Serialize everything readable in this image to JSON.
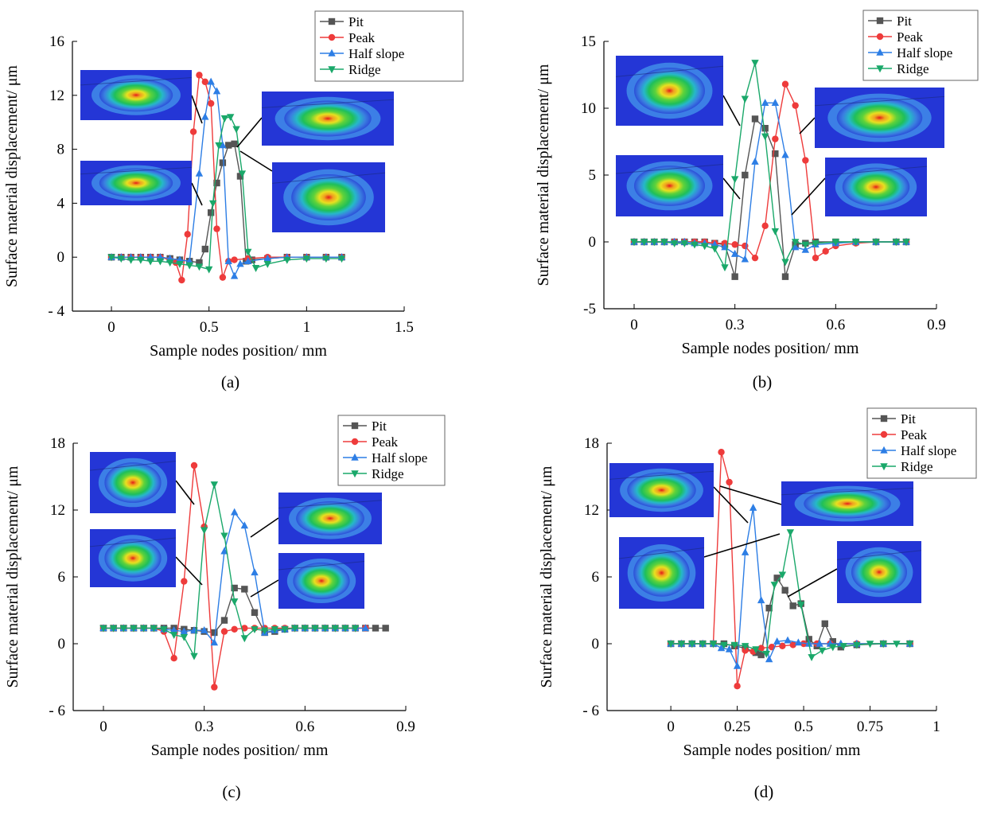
{
  "figure": {
    "panel_labels": [
      "(a)",
      "(b)",
      "(c)",
      "(d)"
    ]
  },
  "colors": {
    "Pit": "#555555",
    "Peak": "#ee3b3b",
    "Half slope": "#2d7ee5",
    "Ridge": "#1aa86a"
  },
  "markers": {
    "Pit": "square",
    "Peak": "circle",
    "Half slope": "triangle-up",
    "Ridge": "triangle-down"
  },
  "chart_data": [
    {
      "type": "line",
      "panel": "(a)",
      "xlabel": "Sample nodes position/ mm",
      "ylabel": "Surface material displacement/ μm",
      "xlim": [
        -0.2,
        1.5
      ],
      "ylim": [
        -4,
        16
      ],
      "xticks": [
        0,
        0.5,
        1,
        1.5
      ],
      "xtick_labels": [
        "0",
        "0.5",
        "1",
        "1.5"
      ],
      "yticks": [
        -4,
        0,
        4,
        8,
        12,
        16
      ],
      "ytick_labels": [
        "- 4",
        "0",
        "4",
        "8",
        "12",
        "16"
      ],
      "legend": [
        "Pit",
        "Peak",
        "Half slope",
        "Ridge"
      ],
      "legend_position": "top-right",
      "series": [
        {
          "name": "Pit",
          "x": [
            0,
            0.05,
            0.1,
            0.15,
            0.2,
            0.25,
            0.3,
            0.35,
            0.4,
            0.45,
            0.48,
            0.51,
            0.54,
            0.57,
            0.6,
            0.63,
            0.66,
            0.69,
            0.72,
            0.8,
            0.9,
            1,
            1.1,
            1.18
          ],
          "y": [
            0,
            0,
            0,
            0,
            0,
            0,
            -0.1,
            -0.2,
            -0.3,
            -0.4,
            0.6,
            3.3,
            5.5,
            7,
            8.3,
            8.4,
            6,
            -0.3,
            -0.2,
            -0.1,
            0,
            0,
            0,
            0
          ]
        },
        {
          "name": "Peak",
          "x": [
            0,
            0.05,
            0.1,
            0.15,
            0.2,
            0.25,
            0.3,
            0.33,
            0.36,
            0.39,
            0.42,
            0.45,
            0.48,
            0.51,
            0.54,
            0.57,
            0.6,
            0.63,
            0.7,
            0.8,
            0.9,
            1,
            1.1,
            1.18
          ],
          "y": [
            0,
            0,
            0,
            0,
            0,
            0,
            -0.2,
            -0.4,
            -1.7,
            1.7,
            9.3,
            13.5,
            13,
            11.4,
            2.1,
            -1.5,
            -0.3,
            -0.2,
            -0.1,
            0,
            0,
            0,
            0,
            0
          ]
        },
        {
          "name": "Half slope",
          "x": [
            0,
            0.05,
            0.1,
            0.15,
            0.2,
            0.25,
            0.3,
            0.35,
            0.4,
            0.45,
            0.48,
            0.51,
            0.54,
            0.57,
            0.6,
            0.63,
            0.66,
            0.7,
            0.8,
            0.9,
            1,
            1.1,
            1.18
          ],
          "y": [
            0,
            0,
            0,
            0,
            0,
            0,
            -0.1,
            -0.2,
            -0.3,
            6.2,
            10.4,
            13,
            12.3,
            8.3,
            -0.3,
            -1.4,
            -0.5,
            -0.3,
            -0.1,
            0,
            0,
            0,
            0
          ]
        },
        {
          "name": "Ridge",
          "x": [
            0,
            0.05,
            0.1,
            0.15,
            0.2,
            0.25,
            0.3,
            0.35,
            0.4,
            0.45,
            0.5,
            0.52,
            0.55,
            0.58,
            0.61,
            0.64,
            0.67,
            0.7,
            0.74,
            0.8,
            0.9,
            1,
            1.1,
            1.18
          ],
          "y": [
            0,
            -0.1,
            -0.2,
            -0.2,
            -0.3,
            -0.3,
            -0.4,
            -0.5,
            -0.6,
            -0.7,
            -0.9,
            4,
            8.3,
            10.3,
            10.4,
            9.5,
            6.2,
            0.4,
            -0.8,
            -0.5,
            -0.2,
            -0.1,
            -0.1,
            -0.1
          ]
        }
      ]
    },
    {
      "type": "line",
      "panel": "(b)",
      "xlabel": "Sample nodes position/ mm",
      "ylabel": "Surface material displacement/ μm",
      "xlim": [
        -0.09,
        0.9
      ],
      "ylim": [
        -5,
        15
      ],
      "xticks": [
        0,
        0.3,
        0.6,
        0.9
      ],
      "xtick_labels": [
        "0",
        "0.3",
        "0.6",
        "0.9"
      ],
      "yticks": [
        -5,
        0,
        5,
        10,
        15
      ],
      "ytick_labels": [
        "-5",
        "0",
        "5",
        "10",
        "15"
      ],
      "legend": [
        "Pit",
        "Peak",
        "Half slope",
        "Ridge"
      ],
      "legend_position": "top-right",
      "series": [
        {
          "name": "Pit",
          "x": [
            0,
            0.03,
            0.06,
            0.09,
            0.12,
            0.15,
            0.18,
            0.21,
            0.24,
            0.27,
            0.3,
            0.33,
            0.36,
            0.39,
            0.42,
            0.45,
            0.48,
            0.51,
            0.54,
            0.6,
            0.66,
            0.72,
            0.78,
            0.81
          ],
          "y": [
            0,
            0,
            0,
            0,
            0,
            0,
            0,
            0,
            -0.1,
            -0.2,
            -2.6,
            5,
            9.2,
            8.5,
            6.6,
            -2.6,
            -0.2,
            -0.1,
            0,
            0,
            0,
            0,
            0,
            0
          ]
        },
        {
          "name": "Peak",
          "x": [
            0,
            0.03,
            0.06,
            0.09,
            0.12,
            0.15,
            0.18,
            0.21,
            0.24,
            0.27,
            0.3,
            0.33,
            0.36,
            0.39,
            0.42,
            0.45,
            0.48,
            0.51,
            0.54,
            0.57,
            0.6,
            0.66,
            0.72,
            0.78,
            0.81
          ],
          "y": [
            0,
            0,
            0,
            0,
            0,
            0,
            0,
            0,
            -0.1,
            -0.1,
            -0.2,
            -0.3,
            -1.2,
            1.2,
            7.7,
            11.8,
            10.2,
            6.1,
            -1.2,
            -0.7,
            -0.3,
            -0.1,
            0,
            0,
            0
          ]
        },
        {
          "name": "Half slope",
          "x": [
            0,
            0.03,
            0.06,
            0.09,
            0.12,
            0.15,
            0.18,
            0.21,
            0.24,
            0.27,
            0.3,
            0.33,
            0.36,
            0.39,
            0.42,
            0.45,
            0.48,
            0.51,
            0.54,
            0.6,
            0.66,
            0.72,
            0.78,
            0.81
          ],
          "y": [
            0,
            0,
            0,
            0,
            0,
            0,
            -0.1,
            -0.1,
            -0.2,
            -0.4,
            -0.9,
            -1.3,
            6,
            10.4,
            10.4,
            6.5,
            -0.4,
            -0.6,
            -0.2,
            -0.1,
            0,
            0,
            0,
            0
          ]
        },
        {
          "name": "Ridge",
          "x": [
            0,
            0.03,
            0.06,
            0.09,
            0.12,
            0.15,
            0.18,
            0.21,
            0.24,
            0.27,
            0.3,
            0.33,
            0.36,
            0.39,
            0.42,
            0.45,
            0.48,
            0.51,
            0.54,
            0.6,
            0.66,
            0.72,
            0.78,
            0.81
          ],
          "y": [
            0,
            0,
            0,
            0,
            -0.1,
            -0.1,
            -0.2,
            -0.3,
            -0.5,
            -1.9,
            4.7,
            10.7,
            13.4,
            7.9,
            0.8,
            -1.5,
            0,
            -0.2,
            -0.1,
            0,
            0,
            0,
            0,
            0
          ]
        }
      ]
    },
    {
      "type": "line",
      "panel": "(c)",
      "xlabel": "Sample nodes position/ mm",
      "ylabel": "Surface material displacement/ μm",
      "xlim": [
        -0.09,
        0.9
      ],
      "ylim": [
        -6,
        18
      ],
      "xticks": [
        0,
        0.3,
        0.6,
        0.9
      ],
      "xtick_labels": [
        "0",
        "0.3",
        "0.6",
        "0.9"
      ],
      "yticks": [
        -6,
        0,
        6,
        12,
        18
      ],
      "ytick_labels": [
        "- 6",
        "0",
        "6",
        "12",
        "18"
      ],
      "legend": [
        "Pit",
        "Peak",
        "Half slope",
        "Ridge"
      ],
      "legend_position": "top-right",
      "series": [
        {
          "name": "Pit",
          "x": [
            0,
            0.03,
            0.06,
            0.09,
            0.12,
            0.15,
            0.18,
            0.21,
            0.24,
            0.27,
            0.3,
            0.33,
            0.36,
            0.39,
            0.42,
            0.45,
            0.48,
            0.51,
            0.54,
            0.57,
            0.6,
            0.63,
            0.66,
            0.69,
            0.72,
            0.75,
            0.78,
            0.81,
            0.84
          ],
          "y": [
            1.4,
            1.4,
            1.4,
            1.4,
            1.4,
            1.4,
            1.4,
            1.4,
            1.3,
            1.2,
            1.1,
            1.0,
            2.1,
            5.0,
            4.9,
            2.8,
            1.0,
            1.1,
            1.3,
            1.4,
            1.4,
            1.4,
            1.4,
            1.4,
            1.4,
            1.4,
            1.4,
            1.4,
            1.4
          ]
        },
        {
          "name": "Peak",
          "x": [
            0,
            0.03,
            0.06,
            0.09,
            0.12,
            0.15,
            0.18,
            0.21,
            0.24,
            0.27,
            0.3,
            0.33,
            0.36,
            0.39,
            0.42,
            0.45,
            0.48,
            0.51,
            0.54,
            0.57,
            0.6,
            0.63,
            0.66,
            0.69,
            0.72,
            0.75,
            0.78
          ],
          "y": [
            1.4,
            1.4,
            1.4,
            1.4,
            1.4,
            1.4,
            1.1,
            -1.3,
            5.6,
            16,
            10.5,
            -3.9,
            1.1,
            1.3,
            1.4,
            1.4,
            1.4,
            1.4,
            1.4,
            1.4,
            1.4,
            1.4,
            1.4,
            1.4,
            1.4,
            1.4,
            1.4
          ]
        },
        {
          "name": "Half slope",
          "x": [
            0,
            0.03,
            0.06,
            0.09,
            0.12,
            0.15,
            0.18,
            0.21,
            0.24,
            0.27,
            0.3,
            0.33,
            0.36,
            0.39,
            0.42,
            0.45,
            0.48,
            0.51,
            0.54,
            0.57,
            0.6,
            0.63,
            0.66,
            0.69,
            0.72,
            0.75,
            0.78
          ],
          "y": [
            1.4,
            1.4,
            1.4,
            1.4,
            1.4,
            1.4,
            1.3,
            1.2,
            1.1,
            1.2,
            1.2,
            0.1,
            8.3,
            11.8,
            10.6,
            6.4,
            1.0,
            1.2,
            1.3,
            1.4,
            1.4,
            1.4,
            1.4,
            1.4,
            1.4,
            1.4,
            1.4
          ]
        },
        {
          "name": "Ridge",
          "x": [
            0,
            0.03,
            0.06,
            0.09,
            0.12,
            0.15,
            0.18,
            0.21,
            0.24,
            0.27,
            0.3,
            0.33,
            0.36,
            0.39,
            0.42,
            0.45,
            0.48,
            0.51,
            0.54,
            0.57,
            0.6,
            0.63,
            0.66,
            0.69,
            0.72,
            0.75
          ],
          "y": [
            1.4,
            1.4,
            1.4,
            1.4,
            1.4,
            1.4,
            1.3,
            0.8,
            0.6,
            -1.1,
            10.2,
            14.3,
            9.7,
            3.8,
            0.5,
            1.3,
            1.2,
            1.3,
            1.3,
            1.4,
            1.4,
            1.4,
            1.4,
            1.4,
            1.4,
            1.4
          ]
        }
      ]
    },
    {
      "type": "line",
      "panel": "(d)",
      "xlabel": "Sample nodes position/ mm",
      "ylabel": "Surface material displacement/ μm",
      "xlim": [
        -0.24,
        1
      ],
      "ylim": [
        -6,
        18
      ],
      "xticks": [
        0,
        0.25,
        0.5,
        0.75,
        1
      ],
      "xtick_labels": [
        "0",
        "0.25",
        "0.5",
        "0.75",
        "1"
      ],
      "yticks": [
        -6,
        0,
        6,
        12,
        18
      ],
      "ytick_labels": [
        "- 6",
        "0",
        "6",
        "12",
        "18"
      ],
      "legend": [
        "Pit",
        "Peak",
        "Half slope",
        "Ridge"
      ],
      "legend_position": "top-right",
      "series": [
        {
          "name": "Pit",
          "x": [
            0,
            0.04,
            0.08,
            0.12,
            0.16,
            0.2,
            0.24,
            0.28,
            0.32,
            0.34,
            0.37,
            0.4,
            0.43,
            0.46,
            0.49,
            0.52,
            0.55,
            0.58,
            0.61,
            0.64,
            0.7,
            0.8,
            0.9
          ],
          "y": [
            0,
            0,
            0,
            0,
            0,
            0,
            -0.2,
            -0.4,
            -0.8,
            -1.0,
            3.2,
            5.9,
            4.8,
            3.4,
            3.6,
            0.4,
            -0.2,
            1.8,
            0.2,
            -0.3,
            -0.1,
            0,
            0
          ]
        },
        {
          "name": "Peak",
          "x": [
            0,
            0.04,
            0.08,
            0.12,
            0.16,
            0.19,
            0.22,
            0.25,
            0.28,
            0.31,
            0.34,
            0.38,
            0.42,
            0.46,
            0.5,
            0.55,
            0.6,
            0.7,
            0.8,
            0.9
          ],
          "y": [
            0,
            0,
            0,
            0,
            0,
            17.2,
            14.5,
            -3.8,
            -0.6,
            -0.7,
            -0.4,
            -0.3,
            -0.2,
            -0.1,
            0,
            0,
            0,
            0,
            0,
            0
          ]
        },
        {
          "name": "Half slope",
          "x": [
            0,
            0.04,
            0.08,
            0.12,
            0.16,
            0.19,
            0.22,
            0.25,
            0.28,
            0.31,
            0.34,
            0.37,
            0.4,
            0.44,
            0.48,
            0.52,
            0.56,
            0.6,
            0.64,
            0.7,
            0.8,
            0.9
          ],
          "y": [
            0,
            0,
            0,
            0,
            0,
            -0.4,
            -0.5,
            -2.0,
            8.2,
            12.2,
            3.9,
            -1.4,
            0.2,
            0.3,
            0.1,
            0,
            0,
            0,
            0,
            0,
            0,
            0
          ]
        },
        {
          "name": "Ridge",
          "x": [
            0,
            0.04,
            0.08,
            0.12,
            0.16,
            0.2,
            0.24,
            0.28,
            0.32,
            0.36,
            0.39,
            0.42,
            0.45,
            0.49,
            0.53,
            0.57,
            0.61,
            0.65,
            0.7,
            0.75,
            0.8,
            0.85,
            0.9
          ],
          "y": [
            0,
            0,
            0,
            0,
            0,
            -0.1,
            -0.1,
            -0.2,
            -0.5,
            -0.9,
            5.3,
            6.2,
            10,
            3.5,
            -1.2,
            -0.6,
            -0.3,
            -0.2,
            -0.1,
            0,
            0,
            0,
            0
          ]
        }
      ]
    }
  ]
}
